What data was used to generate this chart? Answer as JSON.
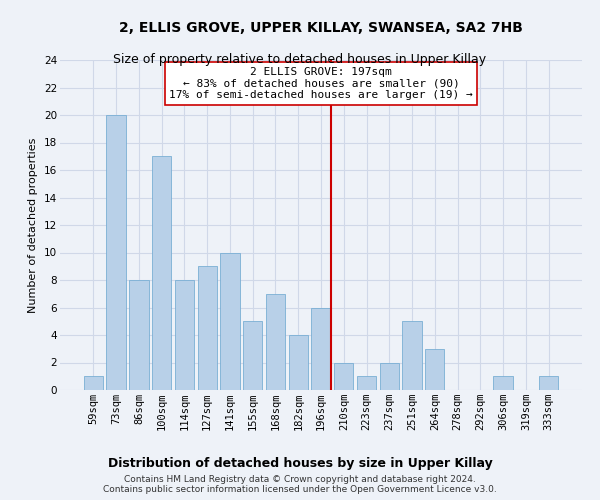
{
  "title": "2, ELLIS GROVE, UPPER KILLAY, SWANSEA, SA2 7HB",
  "subtitle": "Size of property relative to detached houses in Upper Killay",
  "xlabel": "Distribution of detached houses by size in Upper Killay",
  "ylabel": "Number of detached properties",
  "categories": [
    "59sqm",
    "73sqm",
    "86sqm",
    "100sqm",
    "114sqm",
    "127sqm",
    "141sqm",
    "155sqm",
    "168sqm",
    "182sqm",
    "196sqm",
    "210sqm",
    "223sqm",
    "237sqm",
    "251sqm",
    "264sqm",
    "278sqm",
    "292sqm",
    "306sqm",
    "319sqm",
    "333sqm"
  ],
  "values": [
    1,
    20,
    8,
    17,
    8,
    9,
    10,
    5,
    7,
    4,
    6,
    2,
    1,
    2,
    5,
    3,
    0,
    0,
    1,
    0,
    1
  ],
  "bar_color": "#b8d0e8",
  "bar_edge_color": "#7aafd4",
  "highlight_index": 10,
  "vline_color": "#cc0000",
  "ylim": [
    0,
    24
  ],
  "yticks": [
    0,
    2,
    4,
    6,
    8,
    10,
    12,
    14,
    16,
    18,
    20,
    22,
    24
  ],
  "annotation_text": "2 ELLIS GROVE: 197sqm\n← 83% of detached houses are smaller (90)\n17% of semi-detached houses are larger (19) →",
  "annotation_box_color": "#ffffff",
  "annotation_box_edge": "#cc0000",
  "footer_line1": "Contains HM Land Registry data © Crown copyright and database right 2024.",
  "footer_line2": "Contains public sector information licensed under the Open Government Licence v3.0.",
  "background_color": "#eef2f8",
  "grid_color": "#d0d8e8",
  "title_fontsize": 10,
  "subtitle_fontsize": 9,
  "xlabel_fontsize": 9,
  "ylabel_fontsize": 8,
  "tick_fontsize": 7.5,
  "annot_fontsize": 8,
  "footer_fontsize": 6.5
}
